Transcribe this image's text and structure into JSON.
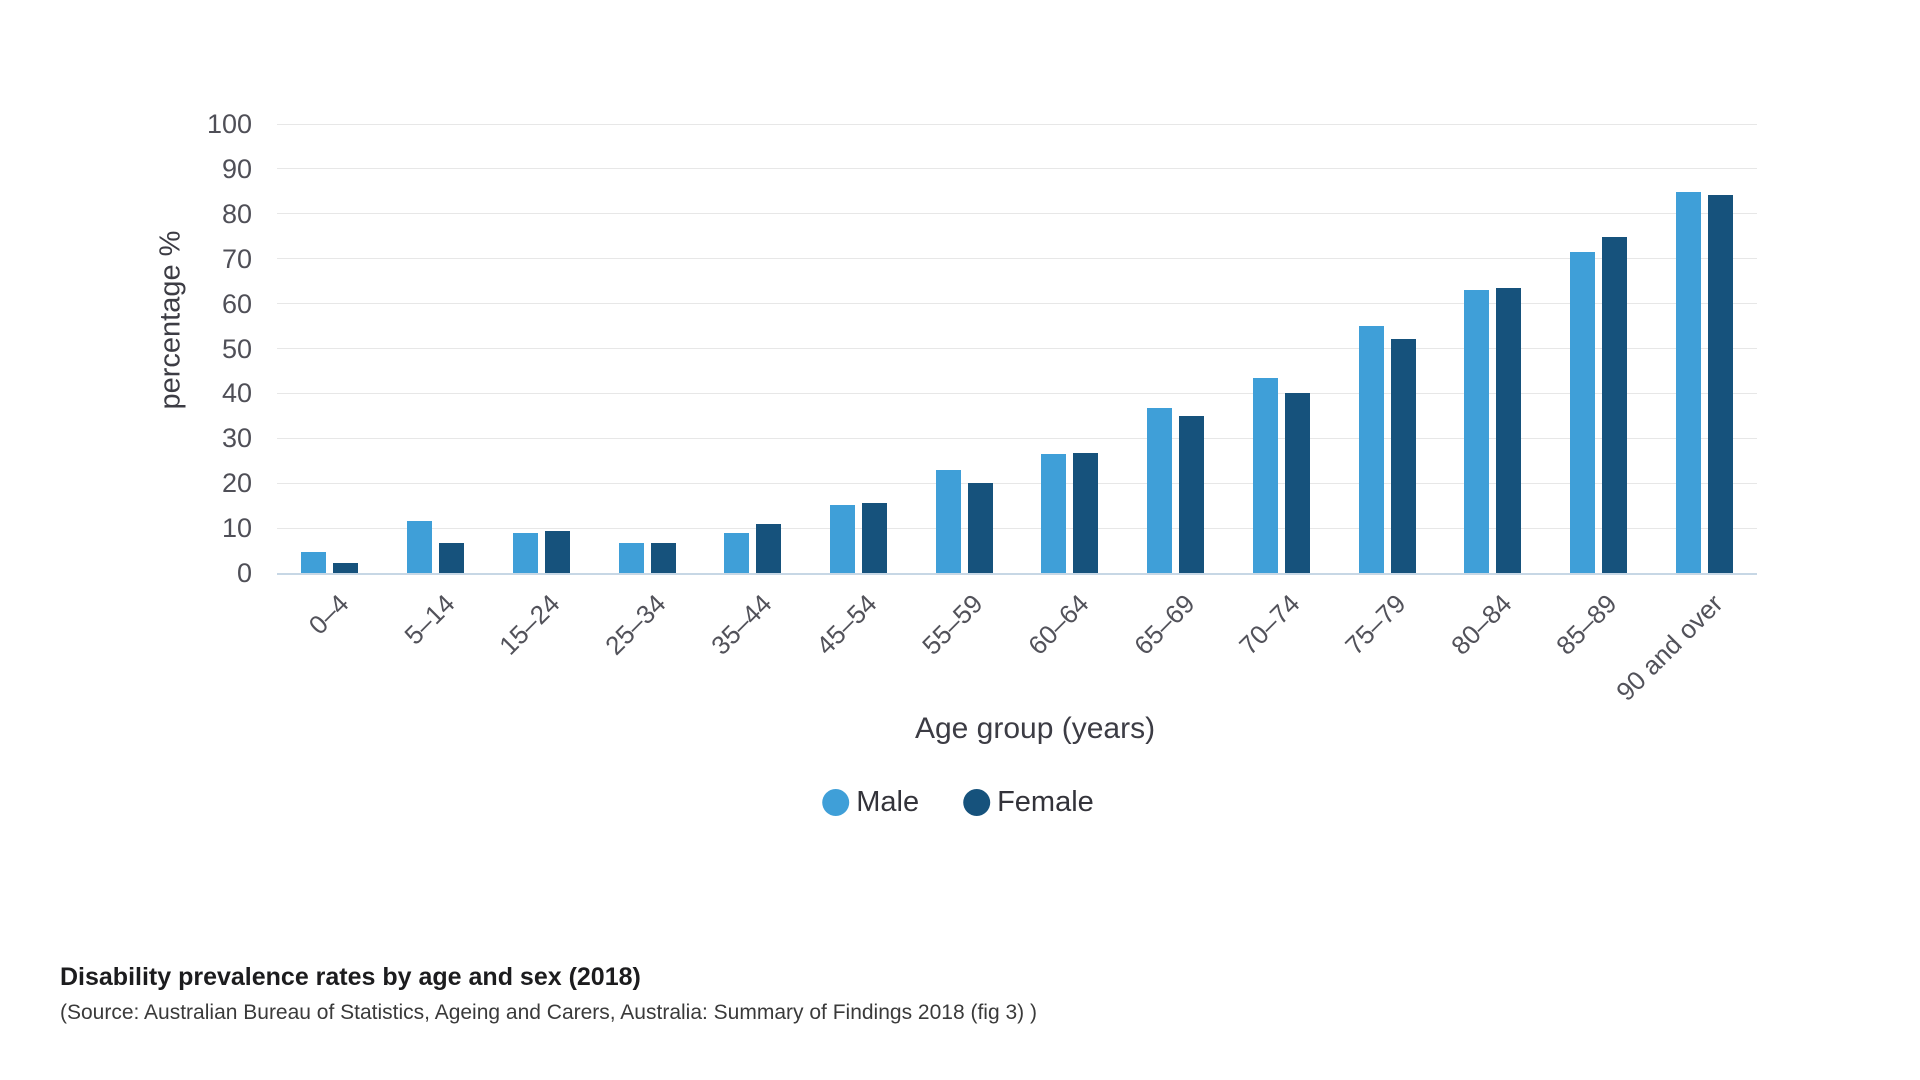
{
  "chart_data": {
    "type": "bar",
    "categories": [
      "0–4",
      "5–14",
      "15–24",
      "25–34",
      "35–44",
      "45–54",
      "55–59",
      "60–64",
      "65–69",
      "70–74",
      "75–79",
      "80–84",
      "85–89",
      "90 and over"
    ],
    "series": [
      {
        "name": "Male",
        "color": "#3f9fd8",
        "values": [
          4.6,
          11.6,
          8.8,
          6.6,
          8.8,
          15.1,
          23.0,
          26.6,
          36.8,
          43.5,
          55.1,
          63.0,
          71.4,
          84.8
        ]
      },
      {
        "name": "Female",
        "color": "#16527c",
        "values": [
          2.2,
          6.6,
          9.4,
          6.6,
          10.9,
          15.6,
          20.0,
          26.7,
          35.0,
          40.1,
          52.2,
          63.4,
          74.8,
          84.1
        ]
      }
    ],
    "xlabel": "Age group (years)",
    "ylabel": "percentage %",
    "ylim": [
      0,
      100
    ],
    "ytick_step": 10,
    "yticks": [
      "0",
      "10",
      "20",
      "30",
      "40",
      "50",
      "60",
      "70",
      "80",
      "90",
      "100"
    ],
    "grid": "horizontal",
    "legend_position": "bottom",
    "gridline_color": "#e7e7e7",
    "baseline_color": "#c7d7e5"
  },
  "caption": {
    "title": "Disability prevalence rates by age and sex (2018)",
    "source": "(Source: Australian Bureau of Statistics, Ageing and Carers, Australia: Summary of Findings 2018 (fig 3) )"
  }
}
